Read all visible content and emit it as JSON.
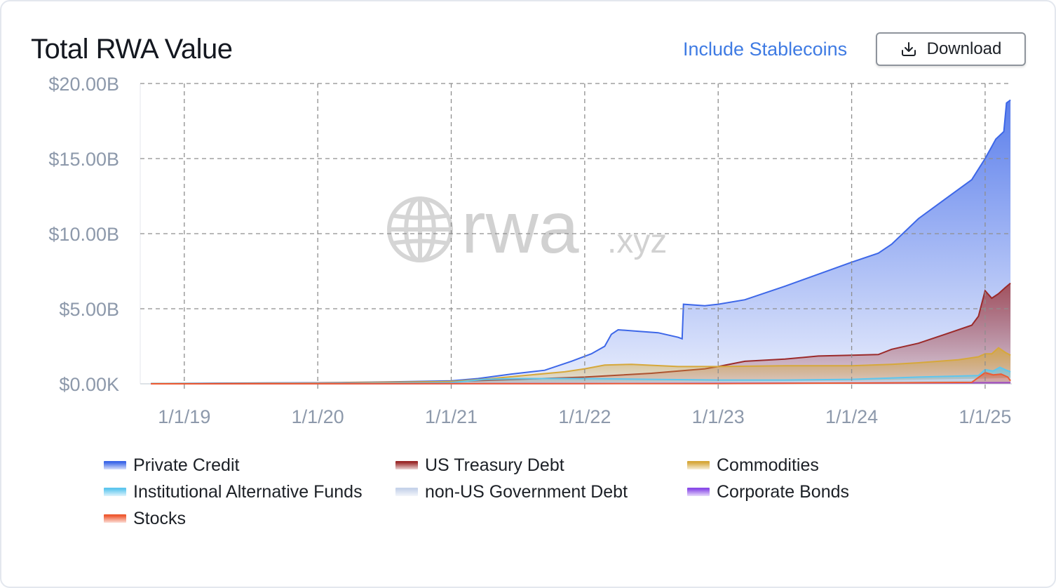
{
  "header": {
    "title": "Total RWA Value",
    "toggle_label": "Include Stablecoins",
    "download_label": "Download"
  },
  "watermark": {
    "text_main": "rwa",
    "text_suffix": ".xyz"
  },
  "colors": {
    "private_credit": "#3d67e8",
    "us_treasury": "#9b2a2a",
    "commodities": "#d6a83a",
    "institutional_alt": "#5ec6ee",
    "non_us_gov": "#c6d3ea",
    "corporate_bonds": "#8a4ce8",
    "stocks": "#ee5a32"
  },
  "chart_data": {
    "type": "area",
    "stacked": true,
    "title": "Total RWA Value",
    "y_tick_labels": [
      "$0.00K",
      "$5.00B",
      "$10.00B",
      "$15.00B",
      "$20.00B"
    ],
    "y_ticks": [
      0,
      5,
      10,
      15,
      20
    ],
    "y_unit": "B USD",
    "ylim": [
      0,
      20
    ],
    "x_tick_labels": [
      "1/1/19",
      "1/1/20",
      "1/1/21",
      "1/1/22",
      "1/1/23",
      "1/1/24",
      "1/1/25"
    ],
    "x_ticks": [
      2019.0,
      2020.0,
      2021.0,
      2022.0,
      2023.0,
      2024.0,
      2025.0
    ],
    "xlim": [
      2018.67,
      2025.2
    ],
    "grid": true,
    "legend_position": "bottom",
    "series": [
      {
        "name": "Private Credit",
        "color_key": "private_credit",
        "layer": "total",
        "points": [
          [
            2018.75,
            0.02
          ],
          [
            2019.5,
            0.05
          ],
          [
            2020.0,
            0.07
          ],
          [
            2020.5,
            0.12
          ],
          [
            2021.0,
            0.2
          ],
          [
            2021.2,
            0.35
          ],
          [
            2021.45,
            0.65
          ],
          [
            2021.7,
            0.9
          ],
          [
            2021.9,
            1.5
          ],
          [
            2022.05,
            2.0
          ],
          [
            2022.15,
            2.5
          ],
          [
            2022.2,
            3.3
          ],
          [
            2022.25,
            3.6
          ],
          [
            2022.4,
            3.5
          ],
          [
            2022.55,
            3.4
          ],
          [
            2022.7,
            3.1
          ],
          [
            2022.73,
            3.0
          ],
          [
            2022.74,
            5.3
          ],
          [
            2022.9,
            5.2
          ],
          [
            2023.0,
            5.3
          ],
          [
            2023.2,
            5.6
          ],
          [
            2023.5,
            6.5
          ],
          [
            2023.75,
            7.3
          ],
          [
            2024.0,
            8.1
          ],
          [
            2024.2,
            8.7
          ],
          [
            2024.3,
            9.3
          ],
          [
            2024.5,
            11.0
          ],
          [
            2024.7,
            12.3
          ],
          [
            2024.9,
            13.6
          ],
          [
            2025.0,
            15.0
          ],
          [
            2025.05,
            15.8
          ],
          [
            2025.08,
            16.3
          ],
          [
            2025.14,
            16.8
          ],
          [
            2025.16,
            18.7
          ],
          [
            2025.19,
            18.9
          ]
        ]
      },
      {
        "name": "US Treasury Debt",
        "color_key": "us_treasury",
        "layer": "cumulative",
        "points": [
          [
            2018.75,
            0.01
          ],
          [
            2020.0,
            0.05
          ],
          [
            2021.0,
            0.15
          ],
          [
            2021.5,
            0.3
          ],
          [
            2022.0,
            0.45
          ],
          [
            2022.5,
            0.7
          ],
          [
            2022.9,
            1.0
          ],
          [
            2023.0,
            1.15
          ],
          [
            2023.2,
            1.5
          ],
          [
            2023.5,
            1.65
          ],
          [
            2023.75,
            1.85
          ],
          [
            2024.0,
            1.9
          ],
          [
            2024.2,
            1.95
          ],
          [
            2024.3,
            2.3
          ],
          [
            2024.5,
            2.7
          ],
          [
            2024.7,
            3.3
          ],
          [
            2024.9,
            3.9
          ],
          [
            2024.95,
            4.5
          ],
          [
            2025.0,
            6.2
          ],
          [
            2025.05,
            5.7
          ],
          [
            2025.1,
            6.0
          ],
          [
            2025.15,
            6.4
          ],
          [
            2025.19,
            6.7
          ]
        ]
      },
      {
        "name": "Commodities",
        "color_key": "commodities",
        "layer": "cumulative",
        "points": [
          [
            2018.75,
            0.01
          ],
          [
            2020.0,
            0.05
          ],
          [
            2021.0,
            0.15
          ],
          [
            2021.3,
            0.35
          ],
          [
            2021.6,
            0.6
          ],
          [
            2021.85,
            0.8
          ],
          [
            2022.0,
            1.0
          ],
          [
            2022.15,
            1.25
          ],
          [
            2022.35,
            1.3
          ],
          [
            2022.7,
            1.15
          ],
          [
            2023.0,
            1.15
          ],
          [
            2023.5,
            1.2
          ],
          [
            2024.0,
            1.2
          ],
          [
            2024.3,
            1.3
          ],
          [
            2024.5,
            1.4
          ],
          [
            2024.8,
            1.6
          ],
          [
            2024.95,
            1.8
          ],
          [
            2025.0,
            2.0
          ],
          [
            2025.05,
            2.0
          ],
          [
            2025.1,
            2.4
          ],
          [
            2025.15,
            2.1
          ],
          [
            2025.19,
            1.9
          ]
        ]
      },
      {
        "name": "Institutional Alternative Funds",
        "color_key": "institutional_alt",
        "layer": "cumulative",
        "points": [
          [
            2018.75,
            0.01
          ],
          [
            2020.0,
            0.03
          ],
          [
            2021.0,
            0.08
          ],
          [
            2021.25,
            0.3
          ],
          [
            2021.5,
            0.35
          ],
          [
            2022.0,
            0.35
          ],
          [
            2022.5,
            0.3
          ],
          [
            2023.0,
            0.25
          ],
          [
            2023.5,
            0.25
          ],
          [
            2024.0,
            0.3
          ],
          [
            2024.5,
            0.45
          ],
          [
            2024.95,
            0.55
          ],
          [
            2025.0,
            0.95
          ],
          [
            2025.06,
            0.85
          ],
          [
            2025.11,
            1.1
          ],
          [
            2025.16,
            0.9
          ],
          [
            2025.19,
            0.8
          ]
        ]
      },
      {
        "name": "non-US Government Debt",
        "color_key": "non_us_gov",
        "layer": "cumulative",
        "points": [
          [
            2018.75,
            0.0
          ],
          [
            2021.0,
            0.02
          ],
          [
            2022.0,
            0.05
          ],
          [
            2023.0,
            0.1
          ],
          [
            2024.0,
            0.15
          ],
          [
            2025.0,
            0.3
          ],
          [
            2025.19,
            0.35
          ]
        ]
      },
      {
        "name": "Corporate Bonds",
        "color_key": "corporate_bonds",
        "layer": "cumulative",
        "points": [
          [
            2018.75,
            0.0
          ],
          [
            2022.0,
            0.02
          ],
          [
            2024.0,
            0.05
          ],
          [
            2025.19,
            0.08
          ]
        ]
      },
      {
        "name": "Stocks",
        "color_key": "stocks",
        "layer": "cumulative",
        "points": [
          [
            2018.75,
            0.0
          ],
          [
            2023.0,
            0.02
          ],
          [
            2024.0,
            0.05
          ],
          [
            2024.9,
            0.1
          ],
          [
            2025.0,
            0.75
          ],
          [
            2025.06,
            0.6
          ],
          [
            2025.12,
            0.65
          ],
          [
            2025.17,
            0.45
          ],
          [
            2025.19,
            0.2
          ]
        ]
      }
    ]
  }
}
